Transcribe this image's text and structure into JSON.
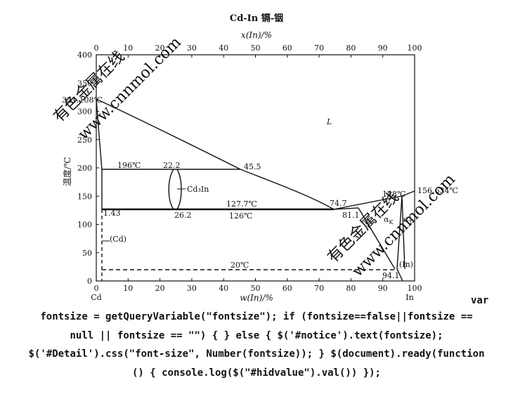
{
  "diagram": {
    "title": "Cd-In  镉-铟",
    "top_axis_label": "x(In)/%",
    "bottom_axis_label": "w(In)/%",
    "y_axis_label": "温度/℃",
    "x_ticks": [
      "0",
      "10",
      "20",
      "30",
      "40",
      "50",
      "60",
      "70",
      "80",
      "90",
      "100"
    ],
    "y_ticks": [
      "0",
      "50",
      "100",
      "150",
      "200",
      "250",
      "300",
      "350",
      "400"
    ],
    "end_left": "Cd",
    "end_right": "In",
    "annotations": {
      "cd_melt": "321.108℃",
      "in_melt": "156.634℃",
      "liquid": "L",
      "eutectic_temp": "196℃",
      "p22_2": "22.2",
      "p45_5": "45.5",
      "phase_cd3in": "Cd₃In",
      "p127_7": "127.7℃",
      "p126": "126℃",
      "p1_43": "1.43",
      "p26_2": "26.2",
      "p74_7": "74.7",
      "p81_1": "81.1",
      "p148": "148℃",
      "alpha_k": "α",
      "alpha_k_sub": "K",
      "alpha_t": "α",
      "alpha_t_sub": "T",
      "cd_phase": "(Cd)",
      "t20": "20℃",
      "in_phase": "(In)",
      "p94_1": "94.1"
    },
    "watermarks": [
      "有色金属在线",
      "www.cnnmol.com",
      "有色金属在线",
      "www.cnnmol.com"
    ]
  },
  "code": {
    "line1": "var",
    "line2": "fontsize = getQueryVariable(\"fontsize\"); if (fontsize==false||fontsize ==",
    "line3": "null || fontsize == \"\") { } else { $('#notice').text(fontsize);",
    "line4": "$('#Detail').css(\"font-size\", Number(fontsize)); } $(document).ready(function",
    "line5": "() { console.log($(\"#hidvalue\").val()) });"
  }
}
